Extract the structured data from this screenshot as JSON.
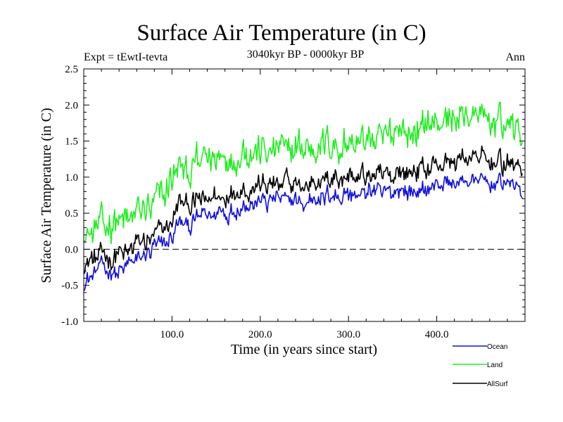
{
  "chart_data": {
    "type": "line",
    "title": "Surface Air Temperature (in C)",
    "subtitle": "3040kyr BP - 0000kyr BP",
    "left_annotation": "Expt = tEwtI-tevta",
    "right_annotation": "Ann",
    "xlabel": "Time (in years since start)",
    "ylabel": "Surface Air Temperature (in C)",
    "xlim": [
      0,
      500
    ],
    "ylim": [
      -1.0,
      2.5
    ],
    "x_ticks": [
      100,
      200,
      300,
      400
    ],
    "x_tick_labels": [
      "100.0",
      "200.0",
      "300.0",
      "400.0"
    ],
    "y_ticks": [
      -1.0,
      -0.5,
      0.0,
      0.5,
      1.0,
      1.5,
      2.0,
      2.5
    ],
    "y_tick_labels": [
      "-1.0",
      "-0.5",
      "0.0",
      "0.5",
      "1.0",
      "1.5",
      "2.0",
      "2.5"
    ],
    "reference_line": {
      "y": 0.0,
      "style": "dashed"
    },
    "grid": false,
    "legend_position": "bottom-right (below plot)",
    "x_step_years": 1,
    "series": [
      {
        "name": "Ocean",
        "color": "#1010e0",
        "anchor_x": [
          0,
          10,
          20,
          30,
          40,
          50,
          60,
          70,
          80,
          90,
          100,
          110,
          120,
          130,
          140,
          150,
          160,
          170,
          180,
          190,
          200,
          210,
          220,
          230,
          240,
          250,
          260,
          270,
          280,
          290,
          300,
          310,
          320,
          330,
          340,
          350,
          360,
          370,
          380,
          390,
          400,
          410,
          420,
          430,
          440,
          450,
          460,
          470,
          480,
          490,
          500
        ],
        "anchor_y": [
          -0.5,
          -0.35,
          -0.25,
          -0.3,
          -0.3,
          -0.2,
          -0.15,
          -0.1,
          0.0,
          0.05,
          0.2,
          0.4,
          0.35,
          0.45,
          0.5,
          0.5,
          0.55,
          0.55,
          0.6,
          0.6,
          0.65,
          0.65,
          0.7,
          0.65,
          0.7,
          0.6,
          0.75,
          0.7,
          0.75,
          0.75,
          0.75,
          0.75,
          0.8,
          0.8,
          0.75,
          0.8,
          0.85,
          0.8,
          0.8,
          0.85,
          0.9,
          0.9,
          0.9,
          0.95,
          0.95,
          0.95,
          0.9,
          0.9,
          0.9,
          0.85,
          0.8
        ],
        "noise_amp": 0.12
      },
      {
        "name": "Land",
        "color": "#20ee20",
        "anchor_x": [
          0,
          10,
          20,
          30,
          40,
          50,
          60,
          70,
          80,
          90,
          100,
          110,
          120,
          130,
          140,
          150,
          160,
          170,
          180,
          190,
          200,
          210,
          220,
          230,
          240,
          250,
          260,
          270,
          280,
          290,
          300,
          310,
          320,
          330,
          340,
          350,
          360,
          370,
          380,
          390,
          400,
          410,
          420,
          430,
          440,
          450,
          460,
          470,
          480,
          490,
          500
        ],
        "anchor_y": [
          0.25,
          0.2,
          0.3,
          0.35,
          0.45,
          0.4,
          0.5,
          0.55,
          0.6,
          0.75,
          1.0,
          1.1,
          1.1,
          1.2,
          1.25,
          1.3,
          1.3,
          1.3,
          1.35,
          1.35,
          1.4,
          1.35,
          1.4,
          1.35,
          1.4,
          1.4,
          1.45,
          1.45,
          1.45,
          1.5,
          1.45,
          1.5,
          1.55,
          1.55,
          1.5,
          1.6,
          1.65,
          1.6,
          1.65,
          1.75,
          1.75,
          1.8,
          1.8,
          1.85,
          1.85,
          1.8,
          1.75,
          1.75,
          1.75,
          1.7,
          1.65
        ],
        "noise_amp": 0.22
      },
      {
        "name": "AllSurf",
        "color": "#000000",
        "anchor_x": [
          0,
          10,
          20,
          30,
          40,
          50,
          60,
          70,
          80,
          90,
          100,
          110,
          120,
          130,
          140,
          150,
          160,
          170,
          180,
          190,
          200,
          210,
          220,
          230,
          240,
          250,
          260,
          270,
          280,
          290,
          300,
          310,
          320,
          330,
          340,
          350,
          360,
          370,
          380,
          390,
          400,
          410,
          420,
          430,
          440,
          450,
          460,
          470,
          480,
          490,
          500
        ],
        "anchor_y": [
          -0.25,
          -0.15,
          -0.1,
          -0.1,
          -0.05,
          0.0,
          0.05,
          0.1,
          0.2,
          0.25,
          0.45,
          0.65,
          0.6,
          0.7,
          0.7,
          0.75,
          0.75,
          0.8,
          0.85,
          0.85,
          0.9,
          0.9,
          0.9,
          0.9,
          0.95,
          0.85,
          1.0,
          0.95,
          1.0,
          1.0,
          1.0,
          1.0,
          1.05,
          1.05,
          1.0,
          1.05,
          1.1,
          1.05,
          1.1,
          1.15,
          1.15,
          1.2,
          1.2,
          1.25,
          1.25,
          1.25,
          1.2,
          1.2,
          1.2,
          1.15,
          1.1
        ],
        "noise_amp": 0.14
      }
    ]
  }
}
